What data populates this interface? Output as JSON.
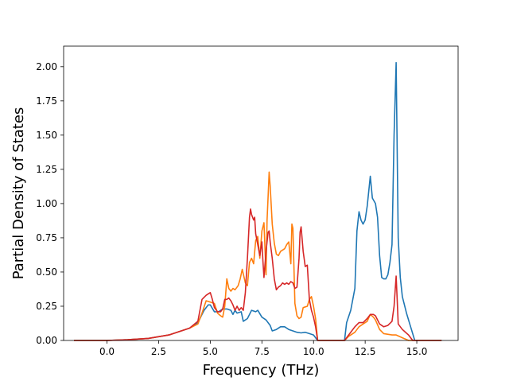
{
  "chart_data": {
    "type": "line",
    "title": "",
    "xlabel": "Frequency (THz)",
    "ylabel": "Partial Density of States",
    "xlim": [
      -2.1,
      17.0
    ],
    "ylim": [
      0.0,
      2.15
    ],
    "xticks": [
      0.0,
      2.5,
      5.0,
      7.5,
      10.0,
      12.5,
      15.0
    ],
    "yticks": [
      0.0,
      0.25,
      0.5,
      0.75,
      1.0,
      1.25,
      1.5,
      1.75,
      2.0
    ],
    "xtick_labels": [
      "0.0",
      "2.5",
      "5.0",
      "7.5",
      "10.0",
      "12.5",
      "15.0"
    ],
    "ytick_labels": [
      "0.00",
      "0.25",
      "0.50",
      "0.75",
      "1.00",
      "1.25",
      "1.50",
      "1.75",
      "2.00"
    ],
    "grid": false,
    "series": [
      {
        "color": "#1f77b4",
        "points": [
          [
            -1.6,
            0
          ],
          [
            0,
            0
          ],
          [
            1,
            0.005
          ],
          [
            2,
            0.015
          ],
          [
            3,
            0.04
          ],
          [
            4,
            0.09
          ],
          [
            4.4,
            0.13
          ],
          [
            4.7,
            0.22
          ],
          [
            4.9,
            0.26
          ],
          [
            5.0,
            0.26
          ],
          [
            5.2,
            0.21
          ],
          [
            5.4,
            0.21
          ],
          [
            5.6,
            0.23
          ],
          [
            5.8,
            0.23
          ],
          [
            6.0,
            0.22
          ],
          [
            6.1,
            0.19
          ],
          [
            6.2,
            0.22
          ],
          [
            6.3,
            0.2
          ],
          [
            6.5,
            0.21
          ],
          [
            6.6,
            0.14
          ],
          [
            6.8,
            0.16
          ],
          [
            6.9,
            0.19
          ],
          [
            7.0,
            0.22
          ],
          [
            7.2,
            0.21
          ],
          [
            7.3,
            0.22
          ],
          [
            7.5,
            0.17
          ],
          [
            7.7,
            0.15
          ],
          [
            7.9,
            0.11
          ],
          [
            8.0,
            0.07
          ],
          [
            8.2,
            0.08
          ],
          [
            8.4,
            0.1
          ],
          [
            8.6,
            0.1
          ],
          [
            8.8,
            0.08
          ],
          [
            9.0,
            0.07
          ],
          [
            9.2,
            0.06
          ],
          [
            9.4,
            0.055
          ],
          [
            9.6,
            0.06
          ],
          [
            9.8,
            0.05
          ],
          [
            10.0,
            0.04
          ],
          [
            10.2,
            0.0
          ],
          [
            11.5,
            0.0
          ],
          [
            11.6,
            0.13
          ],
          [
            11.8,
            0.22
          ],
          [
            12.0,
            0.38
          ],
          [
            12.1,
            0.8
          ],
          [
            12.2,
            0.94
          ],
          [
            12.3,
            0.88
          ],
          [
            12.4,
            0.85
          ],
          [
            12.5,
            0.88
          ],
          [
            12.6,
            0.98
          ],
          [
            12.75,
            1.2
          ],
          [
            12.85,
            1.04
          ],
          [
            13.0,
            1.0
          ],
          [
            13.1,
            0.9
          ],
          [
            13.2,
            0.62
          ],
          [
            13.3,
            0.46
          ],
          [
            13.4,
            0.45
          ],
          [
            13.5,
            0.45
          ],
          [
            13.6,
            0.48
          ],
          [
            13.7,
            0.57
          ],
          [
            13.8,
            0.7
          ],
          [
            13.9,
            1.5
          ],
          [
            14.0,
            2.03
          ],
          [
            14.1,
            0.75
          ],
          [
            14.2,
            0.46
          ],
          [
            14.3,
            0.32
          ],
          [
            14.5,
            0.2
          ],
          [
            14.7,
            0.1
          ],
          [
            14.9,
            0.0
          ],
          [
            16.2,
            0.0
          ]
        ]
      },
      {
        "color": "#ff7f0e",
        "points": [
          [
            -1.6,
            0
          ],
          [
            0,
            0
          ],
          [
            1,
            0.005
          ],
          [
            2,
            0.015
          ],
          [
            3,
            0.04
          ],
          [
            4,
            0.09
          ],
          [
            4.4,
            0.12
          ],
          [
            4.6,
            0.2
          ],
          [
            4.8,
            0.29
          ],
          [
            5.0,
            0.28
          ],
          [
            5.2,
            0.27
          ],
          [
            5.35,
            0.2
          ],
          [
            5.5,
            0.18
          ],
          [
            5.6,
            0.17
          ],
          [
            5.7,
            0.25
          ],
          [
            5.8,
            0.45
          ],
          [
            5.9,
            0.38
          ],
          [
            6.0,
            0.36
          ],
          [
            6.1,
            0.38
          ],
          [
            6.2,
            0.37
          ],
          [
            6.35,
            0.4
          ],
          [
            6.45,
            0.45
          ],
          [
            6.55,
            0.52
          ],
          [
            6.7,
            0.42
          ],
          [
            6.8,
            0.4
          ],
          [
            6.9,
            0.57
          ],
          [
            7.0,
            0.6
          ],
          [
            7.1,
            0.56
          ],
          [
            7.2,
            0.73
          ],
          [
            7.3,
            0.76
          ],
          [
            7.4,
            0.6
          ],
          [
            7.5,
            0.8
          ],
          [
            7.6,
            0.86
          ],
          [
            7.7,
            0.48
          ],
          [
            7.75,
            0.88
          ],
          [
            7.8,
            1.05
          ],
          [
            7.85,
            1.23
          ],
          [
            7.9,
            1.13
          ],
          [
            8.0,
            0.85
          ],
          [
            8.1,
            0.71
          ],
          [
            8.2,
            0.63
          ],
          [
            8.3,
            0.62
          ],
          [
            8.4,
            0.65
          ],
          [
            8.6,
            0.67
          ],
          [
            8.7,
            0.7
          ],
          [
            8.8,
            0.72
          ],
          [
            8.9,
            0.56
          ],
          [
            8.95,
            0.85
          ],
          [
            9.0,
            0.82
          ],
          [
            9.1,
            0.27
          ],
          [
            9.2,
            0.18
          ],
          [
            9.3,
            0.16
          ],
          [
            9.4,
            0.17
          ],
          [
            9.5,
            0.24
          ],
          [
            9.7,
            0.25
          ],
          [
            9.8,
            0.3
          ],
          [
            9.9,
            0.32
          ],
          [
            10.0,
            0.25
          ],
          [
            10.1,
            0.16
          ],
          [
            10.2,
            0.0
          ],
          [
            11.5,
            0.0
          ],
          [
            11.7,
            0.03
          ],
          [
            12.0,
            0.06
          ],
          [
            12.2,
            0.1
          ],
          [
            12.4,
            0.12
          ],
          [
            12.6,
            0.14
          ],
          [
            12.75,
            0.19
          ],
          [
            12.9,
            0.17
          ],
          [
            13.0,
            0.15
          ],
          [
            13.2,
            0.08
          ],
          [
            13.4,
            0.05
          ],
          [
            13.8,
            0.04
          ],
          [
            14.0,
            0.04
          ],
          [
            14.3,
            0.02
          ],
          [
            14.6,
            0.0
          ],
          [
            16.2,
            0.0
          ]
        ]
      },
      {
        "color": "#d62728",
        "points": [
          [
            -1.6,
            0
          ],
          [
            0,
            0
          ],
          [
            1,
            0.005
          ],
          [
            2,
            0.015
          ],
          [
            3,
            0.04
          ],
          [
            4,
            0.09
          ],
          [
            4.4,
            0.14
          ],
          [
            4.6,
            0.3
          ],
          [
            4.8,
            0.33
          ],
          [
            5.0,
            0.35
          ],
          [
            5.1,
            0.3
          ],
          [
            5.2,
            0.24
          ],
          [
            5.35,
            0.21
          ],
          [
            5.5,
            0.21
          ],
          [
            5.6,
            0.23
          ],
          [
            5.7,
            0.3
          ],
          [
            5.8,
            0.3
          ],
          [
            5.9,
            0.31
          ],
          [
            6.0,
            0.29
          ],
          [
            6.1,
            0.26
          ],
          [
            6.2,
            0.22
          ],
          [
            6.3,
            0.25
          ],
          [
            6.4,
            0.22
          ],
          [
            6.5,
            0.24
          ],
          [
            6.6,
            0.22
          ],
          [
            6.7,
            0.35
          ],
          [
            6.8,
            0.6
          ],
          [
            6.9,
            0.9
          ],
          [
            6.95,
            0.96
          ],
          [
            7.0,
            0.92
          ],
          [
            7.1,
            0.88
          ],
          [
            7.15,
            0.9
          ],
          [
            7.2,
            0.78
          ],
          [
            7.3,
            0.7
          ],
          [
            7.4,
            0.62
          ],
          [
            7.5,
            0.72
          ],
          [
            7.55,
            0.58
          ],
          [
            7.6,
            0.46
          ],
          [
            7.7,
            0.65
          ],
          [
            7.8,
            0.79
          ],
          [
            7.85,
            0.8
          ],
          [
            7.9,
            0.72
          ],
          [
            8.0,
            0.6
          ],
          [
            8.1,
            0.45
          ],
          [
            8.2,
            0.37
          ],
          [
            8.3,
            0.39
          ],
          [
            8.4,
            0.4
          ],
          [
            8.5,
            0.42
          ],
          [
            8.6,
            0.41
          ],
          [
            8.7,
            0.42
          ],
          [
            8.8,
            0.41
          ],
          [
            8.9,
            0.43
          ],
          [
            9.0,
            0.42
          ],
          [
            9.1,
            0.38
          ],
          [
            9.2,
            0.39
          ],
          [
            9.3,
            0.6
          ],
          [
            9.35,
            0.79
          ],
          [
            9.4,
            0.83
          ],
          [
            9.5,
            0.65
          ],
          [
            9.6,
            0.54
          ],
          [
            9.7,
            0.55
          ],
          [
            9.8,
            0.3
          ],
          [
            9.9,
            0.22
          ],
          [
            10.0,
            0.17
          ],
          [
            10.1,
            0.1
          ],
          [
            10.2,
            0.0
          ],
          [
            11.5,
            0.0
          ],
          [
            11.7,
            0.04
          ],
          [
            12.0,
            0.1
          ],
          [
            12.2,
            0.13
          ],
          [
            12.4,
            0.13
          ],
          [
            12.6,
            0.16
          ],
          [
            12.75,
            0.19
          ],
          [
            12.9,
            0.19
          ],
          [
            13.0,
            0.18
          ],
          [
            13.2,
            0.12
          ],
          [
            13.4,
            0.1
          ],
          [
            13.6,
            0.11
          ],
          [
            13.8,
            0.14
          ],
          [
            13.9,
            0.25
          ],
          [
            14.0,
            0.47
          ],
          [
            14.05,
            0.3
          ],
          [
            14.1,
            0.12
          ],
          [
            14.3,
            0.08
          ],
          [
            14.6,
            0.04
          ],
          [
            14.8,
            0.0
          ],
          [
            16.2,
            0.0
          ]
        ]
      }
    ]
  }
}
